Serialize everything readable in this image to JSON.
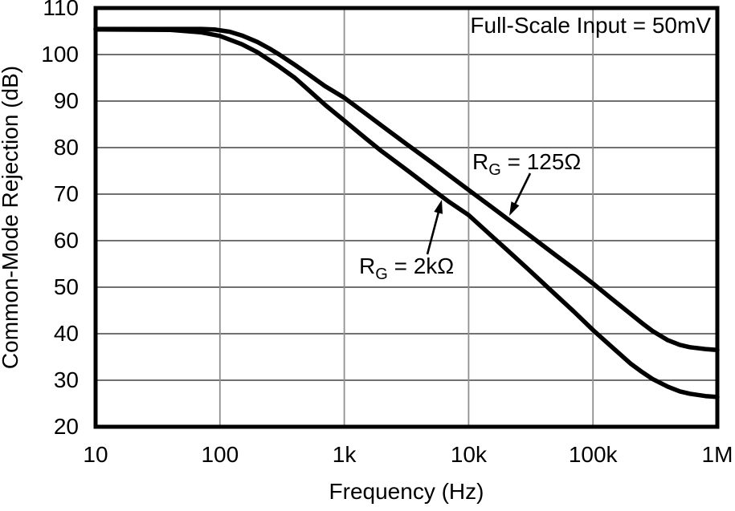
{
  "chart_data": {
    "type": "line",
    "title": "",
    "annotation": "Full-Scale Input = 50mV",
    "xlabel": "Frequency (Hz)",
    "ylabel": "Common-Mode Rejection (dB)",
    "x_scale": "log",
    "xlim": [
      10,
      1000000
    ],
    "ylim": [
      20,
      110
    ],
    "x_ticks": {
      "values": [
        10,
        100,
        1000,
        10000,
        100000,
        1000000
      ],
      "labels": [
        "10",
        "100",
        "1k",
        "10k",
        "100k",
        "1M"
      ]
    },
    "y_ticks": {
      "values": [
        20,
        30,
        40,
        50,
        60,
        70,
        80,
        90,
        100,
        110
      ],
      "labels": [
        "20",
        "30",
        "40",
        "50",
        "60",
        "70",
        "80",
        "90",
        "100",
        "110"
      ]
    },
    "grid": "major",
    "legend_position": "inline-labels-with-arrows",
    "series": [
      {
        "name": "RG = 125Ω",
        "label_parts": {
          "prefix": "R",
          "sub": "G",
          "rest": " = 125Ω"
        },
        "points": [
          [
            10,
            105.5
          ],
          [
            40,
            105.5
          ],
          [
            70,
            105.5
          ],
          [
            90,
            105.4
          ],
          [
            120,
            104.9
          ],
          [
            150,
            104.1
          ],
          [
            200,
            102.7
          ],
          [
            250,
            101.3
          ],
          [
            300,
            100.0
          ],
          [
            400,
            97.8
          ],
          [
            500,
            96.0
          ],
          [
            700,
            93.2
          ],
          [
            1000,
            90.7
          ],
          [
            1500,
            87.2
          ],
          [
            2000,
            84.7
          ],
          [
            3000,
            81.2
          ],
          [
            5000,
            76.9
          ],
          [
            7000,
            74.0
          ],
          [
            10000,
            70.9
          ],
          [
            15000,
            67.4
          ],
          [
            20000,
            64.9
          ],
          [
            30000,
            61.4
          ],
          [
            50000,
            56.9
          ],
          [
            70000,
            54.0
          ],
          [
            100000,
            50.8
          ],
          [
            140000,
            47.6
          ],
          [
            200000,
            44.3
          ],
          [
            250000,
            42.2
          ],
          [
            300000,
            40.6
          ],
          [
            400000,
            38.6
          ],
          [
            500000,
            37.6
          ],
          [
            600000,
            37.1
          ],
          [
            800000,
            36.7
          ],
          [
            1000000,
            36.5
          ]
        ]
      },
      {
        "name": "RG = 2kΩ",
        "label_parts": {
          "prefix": "R",
          "sub": "G",
          "rest": " = 2kΩ"
        },
        "points": [
          [
            10,
            105.4
          ],
          [
            40,
            105.3
          ],
          [
            70,
            104.8
          ],
          [
            100,
            104.0
          ],
          [
            150,
            102.2
          ],
          [
            200,
            100.5
          ],
          [
            300,
            97.4
          ],
          [
            400,
            95.0
          ],
          [
            500,
            92.7
          ],
          [
            700,
            89.2
          ],
          [
            1000,
            85.8
          ],
          [
            1500,
            81.9
          ],
          [
            2000,
            79.2
          ],
          [
            3000,
            75.7
          ],
          [
            5000,
            71.2
          ],
          [
            7000,
            68.3
          ],
          [
            10000,
            65.5
          ],
          [
            15000,
            61.2
          ],
          [
            20000,
            58.2
          ],
          [
            30000,
            53.9
          ],
          [
            50000,
            48.4
          ],
          [
            70000,
            44.8
          ],
          [
            100000,
            40.8
          ],
          [
            140000,
            37.3
          ],
          [
            200000,
            33.6
          ],
          [
            250000,
            31.7
          ],
          [
            300000,
            30.3
          ],
          [
            400000,
            28.6
          ],
          [
            500000,
            27.6
          ],
          [
            600000,
            27.1
          ],
          [
            800000,
            26.6
          ],
          [
            1000000,
            26.4
          ]
        ]
      }
    ]
  },
  "colors": {
    "background": "#ffffff",
    "curve": "#000000",
    "frame": "#000000",
    "grid_horizontal": "#404040",
    "grid_vertical": "#8f8f8f",
    "text": "#000000"
  }
}
